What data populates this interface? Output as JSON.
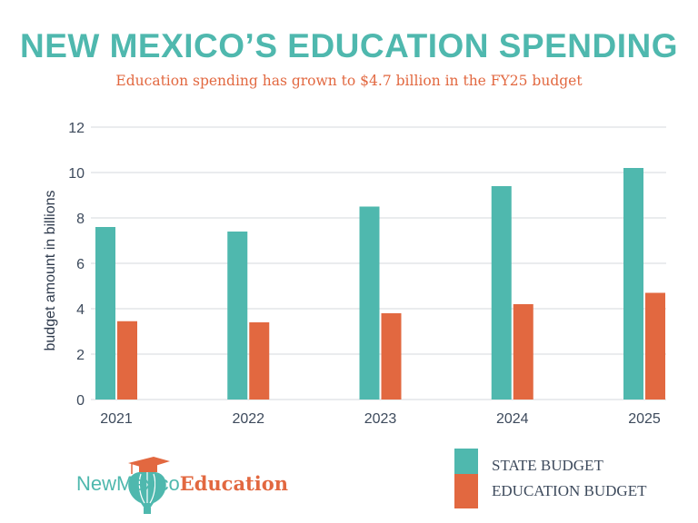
{
  "colors": {
    "state": "#4fb8ae",
    "education": "#e26840",
    "grid": "#e3e6e8"
  },
  "chart_data": {
    "type": "bar",
    "title": "NEW MEXICO’S EDUCATION SPENDING",
    "subtitle": "Education spending has grown to $4.7 billion in the FY25 budget",
    "xlabel": "",
    "ylabel": "budget amount in billions",
    "ylim": [
      0,
      12
    ],
    "yticks": [
      0,
      2,
      4,
      6,
      8,
      10,
      12
    ],
    "grid": true,
    "legend_position": "bottom-right",
    "categories": [
      "2021",
      "2022",
      "2023",
      "2024",
      "2025"
    ],
    "series": [
      {
        "name": "STATE BUDGET",
        "values": [
          7.6,
          7.4,
          8.5,
          9.4,
          10.2
        ]
      },
      {
        "name": "EDUCATION BUDGET",
        "values": [
          3.45,
          3.4,
          3.8,
          4.2,
          4.7
        ]
      }
    ]
  },
  "logo": {
    "part1": "NewMexico",
    "part2": "Education",
    "icon": "graduation-cap-balloon-icon"
  }
}
